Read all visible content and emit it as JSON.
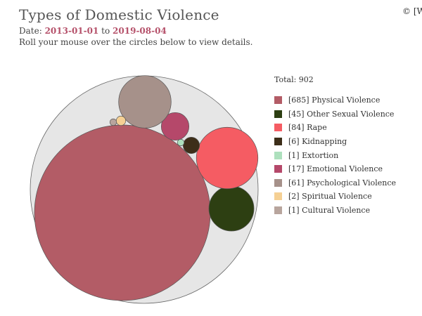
{
  "header": {
    "title": "Types of Domestic Violence",
    "copyright": "© [W",
    "date_prefix": "Date:",
    "date_start": "2013-01-01",
    "date_joiner": "to",
    "date_end": "2019-08-04",
    "instructions": "Roll your mouse over the circles below to view details."
  },
  "chart_data": {
    "type": "bubble",
    "total_label": "Total: 902",
    "total": 902,
    "series": [
      {
        "name": "Physical Violence",
        "value": 685,
        "label": "[685] Physical Violence",
        "color": "#b35c66"
      },
      {
        "name": "Other Sexual Violence",
        "value": 45,
        "label": "[45] Other Sexual Violence",
        "color": "#2d3f12"
      },
      {
        "name": "Rape",
        "value": 84,
        "label": "[84] Rape",
        "color": "#f55c63"
      },
      {
        "name": "Kidnapping",
        "value": 6,
        "label": "[6] Kidnapping",
        "color": "#3d2e19"
      },
      {
        "name": "Extortion",
        "value": 1,
        "label": "[1] Extortion",
        "color": "#ade0bd"
      },
      {
        "name": "Emotional Violence",
        "value": 17,
        "label": "[17] Emotional Violence",
        "color": "#b5486a"
      },
      {
        "name": "Psychological Violence",
        "value": 61,
        "label": "[61] Psychological Violence",
        "color": "#a6918a"
      },
      {
        "name": "Spiritual Violence",
        "value": 2,
        "label": "[2] Spiritual Violence",
        "color": "#f5d094"
      },
      {
        "name": "Cultural Violence",
        "value": 1,
        "label": "[1] Cultural Violence",
        "color": "#b8a59d"
      }
    ],
    "background_color": "#e6e6e6"
  }
}
